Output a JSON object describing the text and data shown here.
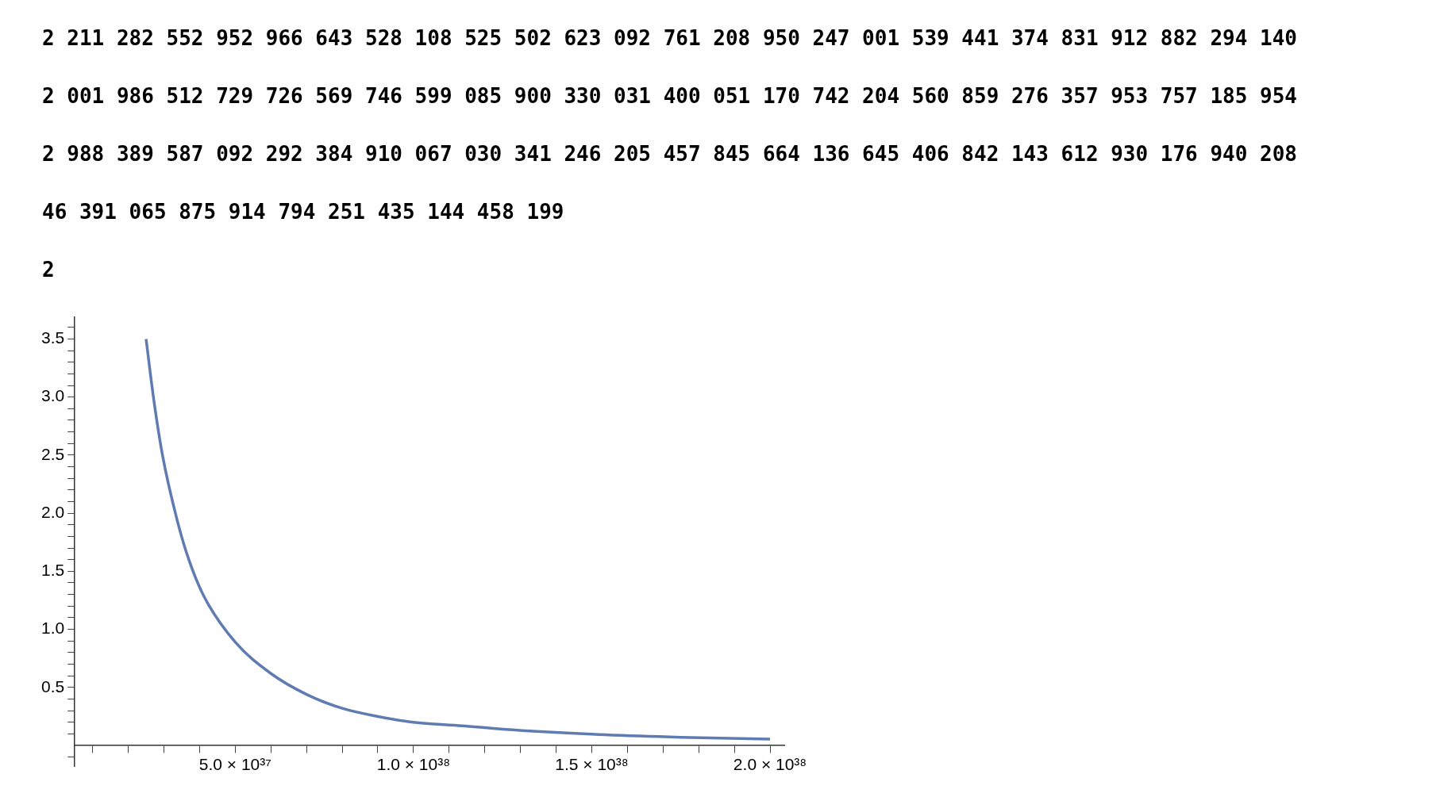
{
  "chart_data": {
    "type": "line",
    "annotations": [
      "2 211 282 552 952 966 643 528 108 525 502 623 092 761 208 950 247 001 539 441 374 831 912 882 294 140",
      "2 001 986 512 729 726 569 746 599 085 900 330 031 400 051 170 742 204 560 859 276 357 953 757 185 954",
      "2 988 389 587 092 292 384 910 067 030 341 246 205 457 845 664 136 645 406 842 143 612 930 176 940 208",
      "46 391 065 875 914 794 251 435 144 458 199",
      "2"
    ],
    "x": [
      2.5e+37,
      2.71e+37,
      2.96e+37,
      3.38e+37,
      3.71e+37,
      4.13e+37,
      5e+37,
      6e+37,
      7e+37,
      8e+37,
      9e+37,
      1e+38,
      1.136e+38,
      1.25e+38,
      1.5e+38,
      1.75e+38,
      2e+38
    ],
    "series": [
      {
        "color": "#5f7bb1",
        "values": [
          3.5,
          2.99,
          2.5,
          1.93,
          1.59,
          1.28,
          0.89,
          0.62,
          0.44,
          0.32,
          0.25,
          0.2,
          0.17,
          0.14,
          0.097,
          0.071,
          0.055
        ]
      }
    ],
    "xlim": [
      5e+36,
      2.04e+38
    ],
    "ylim": [
      -0.18,
      3.69
    ],
    "xticks": [
      {
        "value": 1e+37,
        "label": null
      },
      {
        "value": 2e+37,
        "label": null
      },
      {
        "value": 3e+37,
        "label": null
      },
      {
        "value": 4e+37,
        "label": null
      },
      {
        "value": 5e+37,
        "label": "5.0 × 10³⁷"
      },
      {
        "value": 6e+37,
        "label": null
      },
      {
        "value": 7e+37,
        "label": null
      },
      {
        "value": 8e+37,
        "label": null
      },
      {
        "value": 9e+37,
        "label": null
      },
      {
        "value": 1e+38,
        "label": "1.0 × 10³⁸"
      },
      {
        "value": 1.1e+38,
        "label": null
      },
      {
        "value": 1.2e+38,
        "label": null
      },
      {
        "value": 1.3e+38,
        "label": null
      },
      {
        "value": 1.4e+38,
        "label": null
      },
      {
        "value": 1.5e+38,
        "label": "1.5 × 10³⁸"
      },
      {
        "value": 1.6e+38,
        "label": null
      },
      {
        "value": 1.7e+38,
        "label": null
      },
      {
        "value": 1.8e+38,
        "label": null
      },
      {
        "value": 1.9e+38,
        "label": null
      },
      {
        "value": 2e+38,
        "label": "2.0 × 10³⁸"
      }
    ],
    "yticks": [
      {
        "value": -0.1,
        "label": null
      },
      {
        "value": 0.1,
        "label": null
      },
      {
        "value": 0.2,
        "label": null
      },
      {
        "value": 0.3,
        "label": null
      },
      {
        "value": 0.4,
        "label": null
      },
      0.5,
      {
        "value": 0.6,
        "label": null
      },
      {
        "value": 0.7,
        "label": null
      },
      {
        "value": 0.8,
        "label": null
      },
      {
        "value": 0.9,
        "label": null
      },
      {
        "value": 1.0,
        "label": "1.0"
      },
      {
        "value": 1.1,
        "label": null
      },
      {
        "value": 1.2,
        "label": null
      },
      {
        "value": 1.3,
        "label": null
      },
      {
        "value": 1.4,
        "label": null
      },
      1.5,
      {
        "value": 1.6,
        "label": null
      },
      {
        "value": 1.7,
        "label": null
      },
      {
        "value": 1.8,
        "label": null
      },
      {
        "value": 1.9,
        "label": null
      },
      {
        "value": 2.0,
        "label": "2.0"
      },
      {
        "value": 2.1,
        "label": null
      },
      {
        "value": 2.2,
        "label": null
      },
      {
        "value": 2.3,
        "label": null
      },
      {
        "value": 2.4,
        "label": null
      },
      2.5,
      {
        "value": 2.6,
        "label": null
      },
      {
        "value": 2.7,
        "label": null
      },
      {
        "value": 2.8,
        "label": null
      },
      {
        "value": 2.9,
        "label": null
      },
      {
        "value": 3.0,
        "label": "3.0"
      },
      {
        "value": 3.1,
        "label": null
      },
      {
        "value": 3.2,
        "label": null
      },
      {
        "value": 3.3,
        "label": null
      },
      {
        "value": 3.4,
        "label": null
      },
      3.5,
      {
        "value": 3.6,
        "label": null
      }
    ],
    "grid": false,
    "legend": false,
    "marker": "none",
    "line_style": "solid"
  }
}
